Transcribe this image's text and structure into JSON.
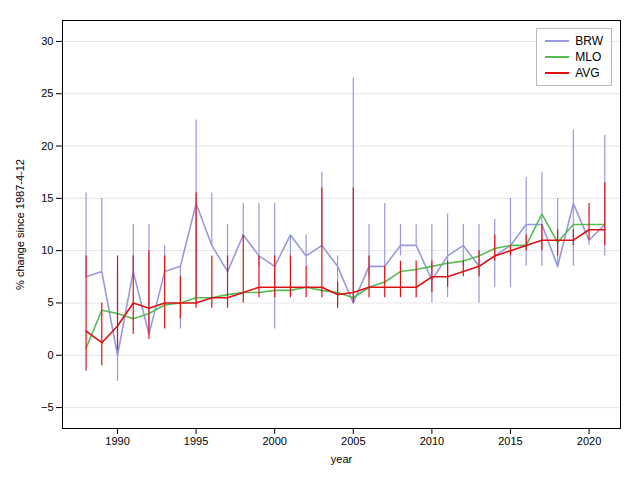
{
  "chart_data": {
    "type": "line",
    "xlabel": "year",
    "ylabel": "% change since 1987-4-12",
    "x": [
      1988,
      1989,
      1990,
      1991,
      1992,
      1993,
      1994,
      1995,
      1996,
      1997,
      1998,
      1999,
      2000,
      2001,
      2002,
      2003,
      2004,
      2005,
      2006,
      2007,
      2008,
      2009,
      2010,
      2011,
      2012,
      2013,
      2014,
      2015,
      2016,
      2017,
      2018,
      2019,
      2020,
      2021
    ],
    "series": [
      {
        "name": "BRW",
        "color": "#9999dd",
        "values": [
          7.5,
          8.0,
          0.0,
          8.0,
          2.0,
          8.0,
          8.5,
          14.5,
          10.5,
          8.0,
          11.5,
          9.5,
          8.5,
          11.5,
          9.5,
          10.5,
          8.5,
          5.0,
          8.5,
          8.5,
          10.5,
          10.5,
          7.2,
          9.5,
          10.5,
          8.5,
          9.5,
          10.5,
          12.5,
          12.5,
          8.5,
          14.5,
          11.0,
          12.5
        ],
        "lower": [
          7.5,
          8.0,
          -2.5,
          8.0,
          2.0,
          8.0,
          2.5,
          5.0,
          10.5,
          8.0,
          11.5,
          8.5,
          2.5,
          8.5,
          8.5,
          10.5,
          4.5,
          5.0,
          7.5,
          7.5,
          9.5,
          10.5,
          5.0,
          5.5,
          8.5,
          5.0,
          6.5,
          6.5,
          8.5,
          8.5,
          8.5,
          8.5,
          10.5,
          9.5
        ],
        "upper": [
          15.5,
          15.0,
          8.0,
          12.5,
          12.5,
          10.5,
          8.5,
          22.5,
          15.5,
          12.5,
          14.5,
          14.5,
          14.5,
          11.5,
          11.5,
          17.5,
          9.5,
          26.5,
          12.5,
          14.5,
          12.5,
          12.5,
          12.5,
          13.5,
          12.5,
          12.5,
          13.0,
          15.0,
          17.0,
          17.5,
          15.0,
          21.5,
          11.0,
          21.0
        ]
      },
      {
        "name": "MLO",
        "color": "#55bb55",
        "values": [
          0.7,
          4.3,
          4.0,
          3.5,
          4.0,
          4.8,
          5.0,
          5.5,
          5.5,
          5.8,
          6.0,
          6.0,
          6.2,
          6.2,
          6.5,
          6.2,
          6.0,
          5.5,
          6.5,
          7.0,
          8.0,
          8.2,
          8.5,
          8.8,
          9.0,
          9.5,
          10.2,
          10.5,
          10.5,
          13.5,
          10.8,
          12.5,
          12.5,
          12.5
        ]
      },
      {
        "name": "AVG",
        "color": "#dd1111",
        "values": [
          2.3,
          1.2,
          2.8,
          5.0,
          4.5,
          5.0,
          5.0,
          5.0,
          5.5,
          5.5,
          6.0,
          6.5,
          6.5,
          6.5,
          6.5,
          6.5,
          5.8,
          6.0,
          6.5,
          6.5,
          6.5,
          6.5,
          7.5,
          7.5,
          8.0,
          8.5,
          9.5,
          10.0,
          10.5,
          11.0,
          11.0,
          11.0,
          12.0,
          12.0
        ],
        "lower": [
          -1.5,
          -1.0,
          0.5,
          2.0,
          1.5,
          2.5,
          3.5,
          4.5,
          4.5,
          4.5,
          5.0,
          5.5,
          5.5,
          5.5,
          5.5,
          5.5,
          4.5,
          5.0,
          5.5,
          5.5,
          5.5,
          5.5,
          6.0,
          6.5,
          7.5,
          7.5,
          9.0,
          9.5,
          10.0,
          10.0,
          9.5,
          10.5,
          11.0,
          10.5
        ],
        "upper": [
          9.5,
          5.0,
          9.5,
          9.5,
          10.0,
          9.5,
          7.5,
          15.5,
          9.5,
          9.5,
          11.5,
          9.5,
          9.5,
          9.5,
          8.5,
          16.0,
          7.0,
          16.0,
          9.5,
          8.5,
          9.0,
          9.0,
          9.0,
          9.0,
          9.0,
          10.0,
          11.5,
          10.5,
          11.5,
          12.5,
          12.0,
          12.0,
          14.5,
          16.5
        ]
      }
    ],
    "xlim": [
      1986.5,
      2022.0
    ],
    "xticks": [
      1990,
      1995,
      2000,
      2005,
      2010,
      2015,
      2020
    ],
    "ylim": [
      -7,
      32
    ],
    "yticks": [
      -5,
      0,
      5,
      10,
      15,
      20,
      25,
      30
    ],
    "grid": true,
    "legend": "upper right"
  }
}
